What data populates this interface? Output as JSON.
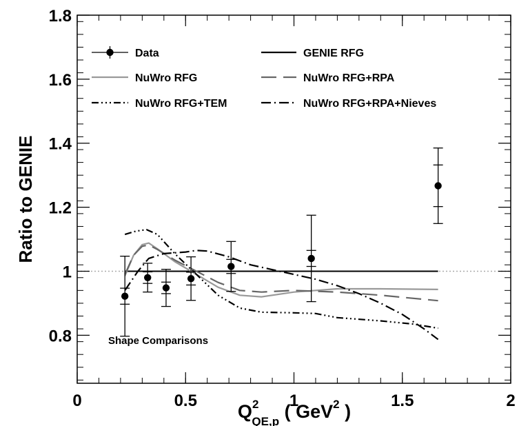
{
  "chart_data": {
    "type": "line",
    "ylabel": "Ratio to GENIE",
    "xlabel": {
      "base": "Q",
      "sup": "2",
      "sub": "QE,p",
      "unit_open": " ( GeV",
      "unit_sup": "2",
      "unit_close": " )"
    },
    "xlim": [
      0,
      2
    ],
    "ylim": [
      0.65,
      1.8
    ],
    "x_ticks": [
      0,
      0.5,
      1,
      1.5,
      2
    ],
    "x_tick_labels": [
      "0",
      "0.5",
      "1",
      "1.5",
      "2"
    ],
    "y_ticks": [
      0.8,
      1.0,
      1.2,
      1.4,
      1.6,
      1.8
    ],
    "y_tick_labels": [
      "0.8",
      "1",
      "1.2",
      "1.4",
      "1.6",
      "1.8"
    ],
    "reference_line": 1.0,
    "annotation": "Shape Comparisons",
    "legend_position": "top",
    "data_points": {
      "name": "Data",
      "points": [
        {
          "x": 0.22,
          "y": 0.922,
          "err_inner": 0.025,
          "err_outer": 0.125
        },
        {
          "x": 0.325,
          "y": 0.98,
          "err_inner": 0.018,
          "err_outer": 0.045
        },
        {
          "x": 0.41,
          "y": 0.948,
          "err_inner": 0.018,
          "err_outer": 0.058
        },
        {
          "x": 0.525,
          "y": 0.977,
          "err_inner": 0.02,
          "err_outer": 0.068
        },
        {
          "x": 0.71,
          "y": 1.015,
          "err_inner": 0.022,
          "err_outer": 0.078
        },
        {
          "x": 1.08,
          "y": 1.04,
          "err_inner": 0.025,
          "err_outer": 0.135
        },
        {
          "x": 1.665,
          "y": 1.267,
          "err_inner": 0.065,
          "err_outer": 0.118
        }
      ]
    },
    "series": [
      {
        "name": "GENIE RFG",
        "color": "#000000",
        "dash": "none",
        "x": [
          0.22,
          1.665
        ],
        "y": [
          1.0,
          1.0
        ]
      },
      {
        "name": "NuWro RFG",
        "color": "#999999",
        "dash": "none",
        "x": [
          0.22,
          0.26,
          0.3,
          0.33,
          0.37,
          0.45,
          0.55,
          0.65,
          0.75,
          0.85,
          1.0,
          1.2,
          1.4,
          1.665
        ],
        "y": [
          0.985,
          1.05,
          1.083,
          1.088,
          1.07,
          1.03,
          0.99,
          0.95,
          0.925,
          0.92,
          0.935,
          0.945,
          0.945,
          0.943
        ]
      },
      {
        "name": "NuWro RFG+RPA",
        "color": "#666666",
        "dash": "22,10",
        "x": [
          0.22,
          0.26,
          0.3,
          0.33,
          0.37,
          0.45,
          0.55,
          0.65,
          0.75,
          0.85,
          1.0,
          1.2,
          1.4,
          1.665
        ],
        "y": [
          0.99,
          1.05,
          1.078,
          1.082,
          1.068,
          1.035,
          1.0,
          0.965,
          0.94,
          0.935,
          0.94,
          0.935,
          0.925,
          0.908
        ]
      },
      {
        "name": "NuWro RFG+TEM",
        "color": "#000000",
        "dash": "10,4,2,4,2,4,2,4",
        "x": [
          0.22,
          0.27,
          0.32,
          0.37,
          0.45,
          0.55,
          0.65,
          0.75,
          0.85,
          1.0,
          1.1,
          1.2,
          1.4,
          1.55,
          1.665
        ],
        "y": [
          1.115,
          1.125,
          1.13,
          1.115,
          1.055,
          0.99,
          0.925,
          0.885,
          0.872,
          0.87,
          0.868,
          0.855,
          0.845,
          0.835,
          0.822
        ]
      },
      {
        "name": "NuWro RFG+RPA+Nieves",
        "color": "#000000",
        "dash": "14,5,2,5",
        "x": [
          0.22,
          0.28,
          0.33,
          0.4,
          0.5,
          0.55,
          0.6,
          0.7,
          0.8,
          0.9,
          1.0,
          1.1,
          1.2,
          1.3,
          1.4,
          1.5,
          1.6,
          1.665
        ],
        "y": [
          0.94,
          1.0,
          1.04,
          1.055,
          1.06,
          1.065,
          1.063,
          1.045,
          1.02,
          1.005,
          0.99,
          0.975,
          0.955,
          0.93,
          0.9,
          0.865,
          0.82,
          0.787
        ]
      }
    ],
    "legend": [
      [
        {
          "label": "Data",
          "key": "data"
        },
        {
          "label": "GENIE RFG",
          "key": "GENIE RFG"
        }
      ],
      [
        {
          "label": "NuWro RFG",
          "key": "NuWro RFG"
        },
        {
          "label": "NuWro RFG+RPA",
          "key": "NuWro RFG+RPA"
        }
      ],
      [
        {
          "label": "NuWro RFG+TEM",
          "key": "NuWro RFG+TEM"
        },
        {
          "label": "NuWro RFG+RPA+Nieves",
          "key": "NuWro RFG+RPA+Nieves"
        }
      ]
    ]
  }
}
